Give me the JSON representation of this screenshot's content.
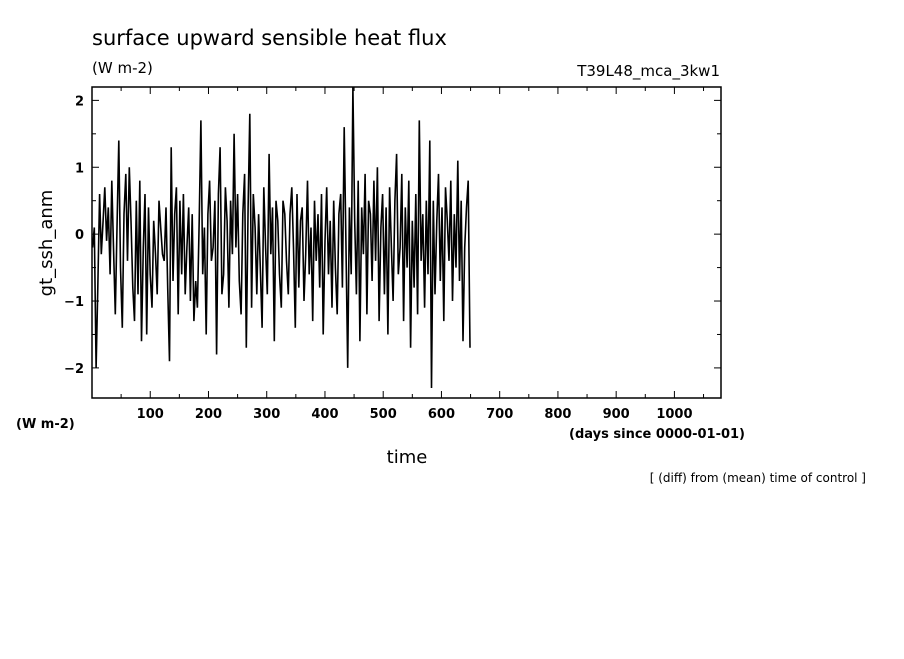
{
  "chart_data": {
    "type": "line",
    "title": "surface upward sensible heat flux",
    "units": "(W m-2)",
    "run_label": "T39L48_mca_3kw1",
    "ylabel": "gt_ssh_anm",
    "xlabel": "time",
    "x_units": "(days since 0000-01-01)",
    "y_units_corner": "(W m-2)",
    "note": "[ (diff) from (mean) time of control ]",
    "xlim": [
      0,
      1080
    ],
    "ylim": [
      -2.45,
      2.2
    ],
    "xticks": [
      100,
      200,
      300,
      400,
      500,
      600,
      700,
      800,
      900,
      1000
    ],
    "yticks": [
      -2,
      -1,
      0,
      1,
      2
    ],
    "grid": false,
    "series": [
      {
        "color": "#000000",
        "x_start": 1,
        "x_step": 3,
        "y": [
          -0.2,
          0.1,
          -2.0,
          -0.8,
          0.6,
          -0.3,
          0.2,
          0.7,
          -0.1,
          0.4,
          -0.6,
          0.8,
          -0.2,
          -1.2,
          0.1,
          1.4,
          -0.5,
          -1.4,
          0.3,
          0.9,
          -0.4,
          1.0,
          0.2,
          -0.8,
          -1.3,
          0.5,
          -0.9,
          0.8,
          -1.6,
          -0.2,
          0.6,
          -1.5,
          0.4,
          -0.6,
          -1.1,
          0.2,
          -0.3,
          -0.9,
          0.5,
          0.1,
          -0.3,
          -0.4,
          0.4,
          -0.8,
          -1.9,
          1.3,
          -0.7,
          0.3,
          0.7,
          -1.2,
          0.5,
          -0.6,
          0.6,
          -0.9,
          -0.2,
          0.4,
          -1.0,
          0.3,
          -1.3,
          -0.7,
          -1.1,
          0.2,
          1.7,
          -0.6,
          0.1,
          -1.5,
          0.3,
          0.8,
          -0.4,
          -0.2,
          0.5,
          -1.8,
          0.6,
          1.3,
          -0.9,
          -0.6,
          0.7,
          0.2,
          -1.1,
          0.5,
          -0.3,
          1.5,
          -0.2,
          0.6,
          -0.7,
          -1.2,
          0.3,
          0.9,
          -1.7,
          0.4,
          1.8,
          -1.1,
          0.6,
          0.1,
          -0.9,
          0.3,
          -0.5,
          -1.4,
          0.7,
          -0.2,
          -0.9,
          1.2,
          -0.3,
          0.4,
          -1.6,
          0.5,
          0.2,
          -0.6,
          -1.1,
          0.5,
          0.3,
          -0.4,
          -0.9,
          0.3,
          0.7,
          -0.2,
          -1.4,
          0.6,
          -0.8,
          0.2,
          0.4,
          -1.0,
          -0.3,
          0.8,
          -0.6,
          0.1,
          -1.3,
          0.5,
          -0.4,
          0.3,
          -0.8,
          0.6,
          -1.5,
          -0.1,
          0.7,
          -0.6,
          0.2,
          -1.1,
          0.5,
          -0.5,
          -1.2,
          0.3,
          0.6,
          -0.8,
          1.6,
          -0.1,
          -2.0,
          0.4,
          -0.6,
          2.2,
          0.2,
          -0.9,
          0.8,
          -1.6,
          0.4,
          -0.3,
          0.9,
          -1.2,
          0.5,
          0.3,
          -0.7,
          0.8,
          -0.4,
          1.0,
          -1.3,
          0.1,
          0.6,
          -0.9,
          0.4,
          -1.5,
          0.7,
          -0.2,
          -1.0,
          0.5,
          1.2,
          -0.6,
          -0.2,
          0.9,
          -1.3,
          0.4,
          -0.5,
          0.8,
          -1.7,
          0.2,
          -0.8,
          0.6,
          -1.2,
          1.7,
          -0.4,
          0.3,
          -1.1,
          0.5,
          -0.6,
          1.4,
          -2.3,
          0.5,
          -0.9,
          0.2,
          0.9,
          -0.7,
          0.4,
          -1.3,
          0.7,
          0.2,
          -0.4,
          0.8,
          -1.0,
          0.3,
          -0.5,
          1.1,
          -0.7,
          0.5,
          -1.6,
          -0.2,
          0.4,
          0.8,
          -1.7
        ]
      }
    ]
  }
}
